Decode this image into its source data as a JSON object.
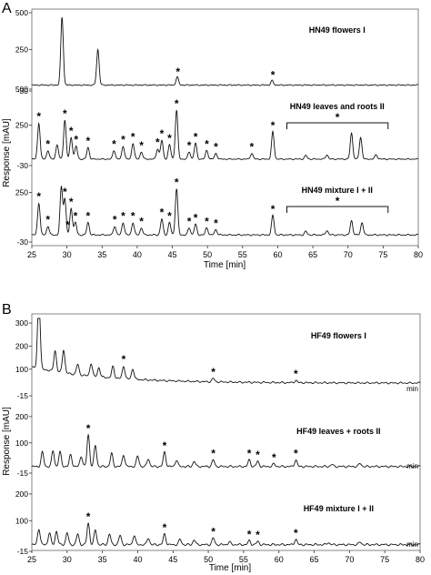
{
  "panel_a": {
    "letter": "A",
    "ylabel": "Response [mAU]",
    "xlabel": "Time [min]",
    "ticks_x": [
      "25",
      "30",
      "35",
      "40",
      "45",
      "50",
      "55",
      "60",
      "65",
      "70",
      "75",
      "80"
    ],
    "x_range": [
      25,
      80
    ],
    "traces": [
      {
        "label": "HN49 flowers I",
        "ticks_y": [
          "500",
          "250",
          "-30"
        ],
        "y_range": [
          -30,
          500
        ],
        "stars": [
          45.8,
          59.3
        ],
        "peaks": [
          [
            29.3,
            460
          ],
          [
            34.4,
            240
          ],
          [
            45.7,
            55
          ],
          [
            59.2,
            30
          ]
        ],
        "baseline": 10,
        "bracket_label": ""
      },
      {
        "label": "HN49 leaves and roots II",
        "ticks_y": [
          "500",
          "250",
          "-30"
        ],
        "y_range": [
          -30,
          500
        ],
        "stars": [
          26.0,
          27.3,
          29.7,
          30.6,
          31.3,
          33.0,
          36.7,
          38.0,
          39.4,
          40.6,
          42.9,
          43.5,
          44.6,
          45.6,
          47.4,
          48.3,
          49.9,
          51.2,
          56.3,
          59.3
        ],
        "peaks": [
          [
            26.0,
            250
          ],
          [
            27.3,
            60
          ],
          [
            28.6,
            100
          ],
          [
            29.7,
            270
          ],
          [
            30.6,
            150
          ],
          [
            31.3,
            90
          ],
          [
            33.0,
            80
          ],
          [
            36.7,
            60
          ],
          [
            38.0,
            90
          ],
          [
            39.4,
            110
          ],
          [
            40.6,
            50
          ],
          [
            42.9,
            70
          ],
          [
            43.5,
            130
          ],
          [
            44.6,
            100
          ],
          [
            45.6,
            340
          ],
          [
            47.4,
            50
          ],
          [
            48.3,
            110
          ],
          [
            49.9,
            60
          ],
          [
            51.2,
            40
          ],
          [
            56.3,
            40
          ],
          [
            59.3,
            190
          ],
          [
            64,
            25
          ],
          [
            67,
            30
          ],
          [
            70.5,
            180
          ],
          [
            71.8,
            150
          ],
          [
            74,
            30
          ]
        ],
        "baseline": 15,
        "bracket_label": "*",
        "bracket": [
          61.3,
          75.7
        ]
      },
      {
        "label": "HN49 mixture I + II",
        "ticks_y": [
          "250",
          "-30"
        ],
        "y_range": [
          -30,
          360
        ],
        "stars": [
          26.0,
          27.3,
          29.7,
          30.1,
          30.6,
          31.2,
          33.0,
          36.8,
          38.0,
          39.4,
          40.6,
          43.5,
          44.6,
          45.6,
          47.4,
          48.3,
          49.9,
          51.2,
          59.3
        ],
        "peaks": [
          [
            26.0,
            180
          ],
          [
            27.3,
            50
          ],
          [
            29.2,
            270
          ],
          [
            29.7,
            200
          ],
          [
            30.6,
            150
          ],
          [
            31.2,
            70
          ],
          [
            33.0,
            70
          ],
          [
            36.8,
            50
          ],
          [
            38.0,
            70
          ],
          [
            39.4,
            70
          ],
          [
            40.6,
            40
          ],
          [
            43.5,
            90
          ],
          [
            44.6,
            70
          ],
          [
            45.6,
            260
          ],
          [
            47.4,
            40
          ],
          [
            48.3,
            60
          ],
          [
            49.9,
            40
          ],
          [
            51.2,
            30
          ],
          [
            59.3,
            110
          ],
          [
            64,
            20
          ],
          [
            67,
            25
          ],
          [
            70.5,
            80
          ],
          [
            72,
            70
          ]
        ],
        "baseline": 10,
        "bracket_label": "*",
        "bracket": [
          61.3,
          75.7
        ]
      }
    ]
  },
  "panel_b": {
    "letter": "B",
    "ylabel": "Response [mAU]",
    "xlabel": "Time [min]",
    "unit_tag": "min",
    "ticks_x": [
      "25",
      "30",
      "35",
      "40",
      "45",
      "50",
      "55",
      "60",
      "65",
      "70",
      "75",
      "80"
    ],
    "x_range": [
      25,
      80
    ],
    "traces": [
      {
        "label": "HF49 flowers I",
        "ticks_y": [
          "300",
          "200",
          "100",
          "-15"
        ],
        "y_range": [
          -15,
          320
        ],
        "stars": [
          38.0,
          50.7,
          62.4
        ],
        "peaks": [
          [
            26.0,
            330
          ],
          [
            28.3,
            90
          ],
          [
            29.5,
            100
          ],
          [
            31.5,
            45
          ],
          [
            33.4,
            55
          ],
          [
            34.5,
            40
          ],
          [
            36.5,
            50
          ],
          [
            38.0,
            55
          ],
          [
            39.3,
            45
          ],
          [
            50.7,
            15
          ],
          [
            62.4,
            10
          ]
        ],
        "baseline": 40,
        "decay": true,
        "bracket_label": ""
      },
      {
        "label": "HF49 leaves + roots II",
        "ticks_y": [
          "200",
          "100",
          "-15"
        ],
        "y_range": [
          -15,
          210
        ],
        "stars": [
          33.0,
          43.8,
          50.7,
          55.8,
          57.0,
          59.3,
          62.4
        ],
        "peaks": [
          [
            26.5,
            55
          ],
          [
            28.0,
            60
          ],
          [
            29.0,
            55
          ],
          [
            30.5,
            45
          ],
          [
            32.0,
            40
          ],
          [
            33.0,
            120
          ],
          [
            34.0,
            80
          ],
          [
            36.3,
            50
          ],
          [
            38.0,
            45
          ],
          [
            40.0,
            40
          ],
          [
            41.5,
            30
          ],
          [
            43.8,
            55
          ],
          [
            45.5,
            25
          ],
          [
            48.0,
            20
          ],
          [
            50.7,
            25
          ],
          [
            55.8,
            25
          ],
          [
            57.0,
            20
          ],
          [
            59.3,
            10
          ],
          [
            62.4,
            25
          ],
          [
            67.5,
            8
          ],
          [
            71.5,
            12
          ]
        ],
        "baseline": 10,
        "bracket_label": ""
      },
      {
        "label": "HF49 mixture I + II",
        "ticks_y": [
          "200",
          "100",
          "-15"
        ],
        "y_range": [
          -15,
          210
        ],
        "stars": [
          33.0,
          43.8,
          50.7,
          55.8,
          57.0,
          62.4
        ],
        "peaks": [
          [
            26.0,
            60
          ],
          [
            27.5,
            45
          ],
          [
            28.5,
            50
          ],
          [
            30.0,
            45
          ],
          [
            31.5,
            40
          ],
          [
            33.0,
            80
          ],
          [
            34.0,
            55
          ],
          [
            36.0,
            40
          ],
          [
            37.5,
            35
          ],
          [
            39.5,
            35
          ],
          [
            41.5,
            25
          ],
          [
            43.8,
            40
          ],
          [
            46,
            20
          ],
          [
            48,
            18
          ],
          [
            50.7,
            25
          ],
          [
            53,
            10
          ],
          [
            55.8,
            15
          ],
          [
            57.0,
            12
          ],
          [
            62.4,
            20
          ],
          [
            67,
            8
          ],
          [
            71.5,
            10
          ]
        ],
        "baseline": 10,
        "bracket_label": ""
      }
    ]
  },
  "chart_data": [
    {
      "type": "line",
      "panel": "A",
      "xlabel": "Time [min]",
      "ylabel": "Response [mAU]",
      "xlim": [
        25,
        80
      ],
      "series": [
        {
          "name": "HN49 flowers I",
          "ylim": [
            -30,
            500
          ],
          "peaks_x": [
            29.3,
            34.4,
            45.7,
            59.2
          ],
          "peaks_y": [
            460,
            240,
            55,
            30
          ],
          "marked_peaks_x": [
            45.8,
            59.3
          ]
        },
        {
          "name": "HN49 leaves and roots II",
          "ylim": [
            -30,
            500
          ],
          "peaks_x": [
            26.0,
            29.7,
            45.6,
            59.3,
            70.5
          ],
          "peaks_y": [
            250,
            270,
            340,
            190,
            180
          ],
          "marked_peaks_x": [
            26.0,
            27.3,
            29.7,
            30.6,
            31.3,
            33.0,
            36.7,
            38.0,
            39.4,
            40.6,
            42.9,
            43.5,
            44.6,
            45.6,
            47.4,
            48.3,
            49.9,
            51.2,
            56.3,
            59.3
          ],
          "marked_range_x": [
            61.3,
            75.7
          ]
        },
        {
          "name": "HN49 mixture I + II",
          "ylim": [
            -30,
            360
          ],
          "peaks_x": [
            26.0,
            29.2,
            45.6,
            59.3,
            70.5
          ],
          "peaks_y": [
            180,
            270,
            260,
            110,
            80
          ],
          "marked_peaks_x": [
            26.0,
            27.3,
            29.7,
            30.1,
            30.6,
            31.2,
            33.0,
            36.8,
            38.0,
            39.4,
            40.6,
            43.5,
            44.6,
            45.6,
            47.4,
            48.3,
            49.9,
            51.2,
            59.3
          ],
          "marked_range_x": [
            61.3,
            75.7
          ]
        }
      ]
    },
    {
      "type": "line",
      "panel": "B",
      "xlabel": "Time [min]",
      "ylabel": "Response [mAU]",
      "xlim": [
        25,
        80
      ],
      "series": [
        {
          "name": "HF49 flowers I",
          "ylim": [
            -15,
            320
          ],
          "peaks_x": [
            26.0,
            29.5,
            38.0,
            50.7,
            62.4
          ],
          "peaks_y": [
            330,
            100,
            55,
            15,
            10
          ],
          "marked_peaks_x": [
            38.0,
            50.7,
            62.4
          ]
        },
        {
          "name": "HF49 leaves + roots II",
          "ylim": [
            -15,
            210
          ],
          "peaks_x": [
            33.0,
            43.8,
            50.7,
            55.8,
            62.4
          ],
          "peaks_y": [
            120,
            55,
            25,
            25,
            25
          ],
          "marked_peaks_x": [
            33.0,
            43.8,
            50.7,
            55.8,
            57.0,
            59.3,
            62.4
          ]
        },
        {
          "name": "HF49 mixture I + II",
          "ylim": [
            -15,
            210
          ],
          "peaks_x": [
            33.0,
            43.8,
            50.7,
            55.8,
            62.4
          ],
          "peaks_y": [
            80,
            40,
            25,
            15,
            20
          ],
          "marked_peaks_x": [
            33.0,
            43.8,
            50.7,
            55.8,
            57.0,
            62.4
          ]
        }
      ]
    }
  ]
}
